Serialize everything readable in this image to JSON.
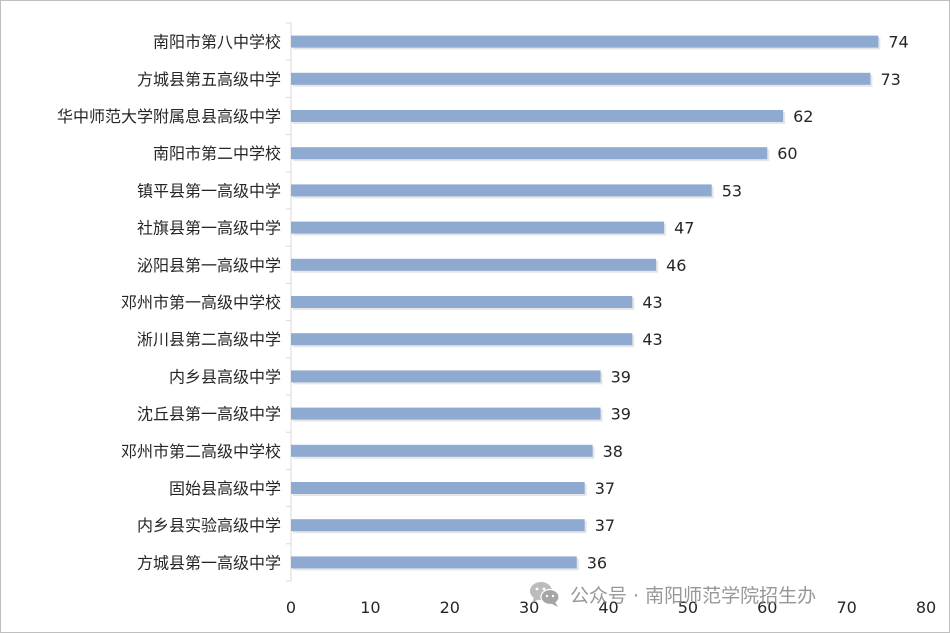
{
  "chart_data": {
    "type": "bar",
    "orientation": "horizontal",
    "title": "",
    "xlabel": "",
    "ylabel": "",
    "categories": [
      "南阳市第八中学校",
      "方城县第五高级中学",
      "华中师范大学附属息县高级中学",
      "南阳市第二中学校",
      "镇平县第一高级中学",
      "社旗县第一高级中学",
      "泌阳县第一高级中学",
      "邓州市第一高级中学校",
      "淅川县第二高级中学",
      "内乡县高级中学",
      "沈丘县第一高级中学",
      "邓州市第二高级中学校",
      "固始县高级中学",
      "内乡县实验高级中学",
      "方城县第一高级中学"
    ],
    "values": [
      74,
      73,
      62,
      60,
      53,
      47,
      46,
      43,
      43,
      39,
      39,
      38,
      37,
      37,
      36
    ],
    "xlim": [
      0,
      80
    ],
    "x_ticks": [
      0,
      10,
      20,
      30,
      40,
      50,
      60,
      70,
      80
    ],
    "grid": false,
    "legend": "none",
    "bar_color": "#8faad0",
    "axis_color": "#d9d9d9",
    "text_color": "#262626"
  },
  "watermark": {
    "icon": "wechat-icon",
    "text": "公众号 · 南阳师范学院招生办"
  }
}
